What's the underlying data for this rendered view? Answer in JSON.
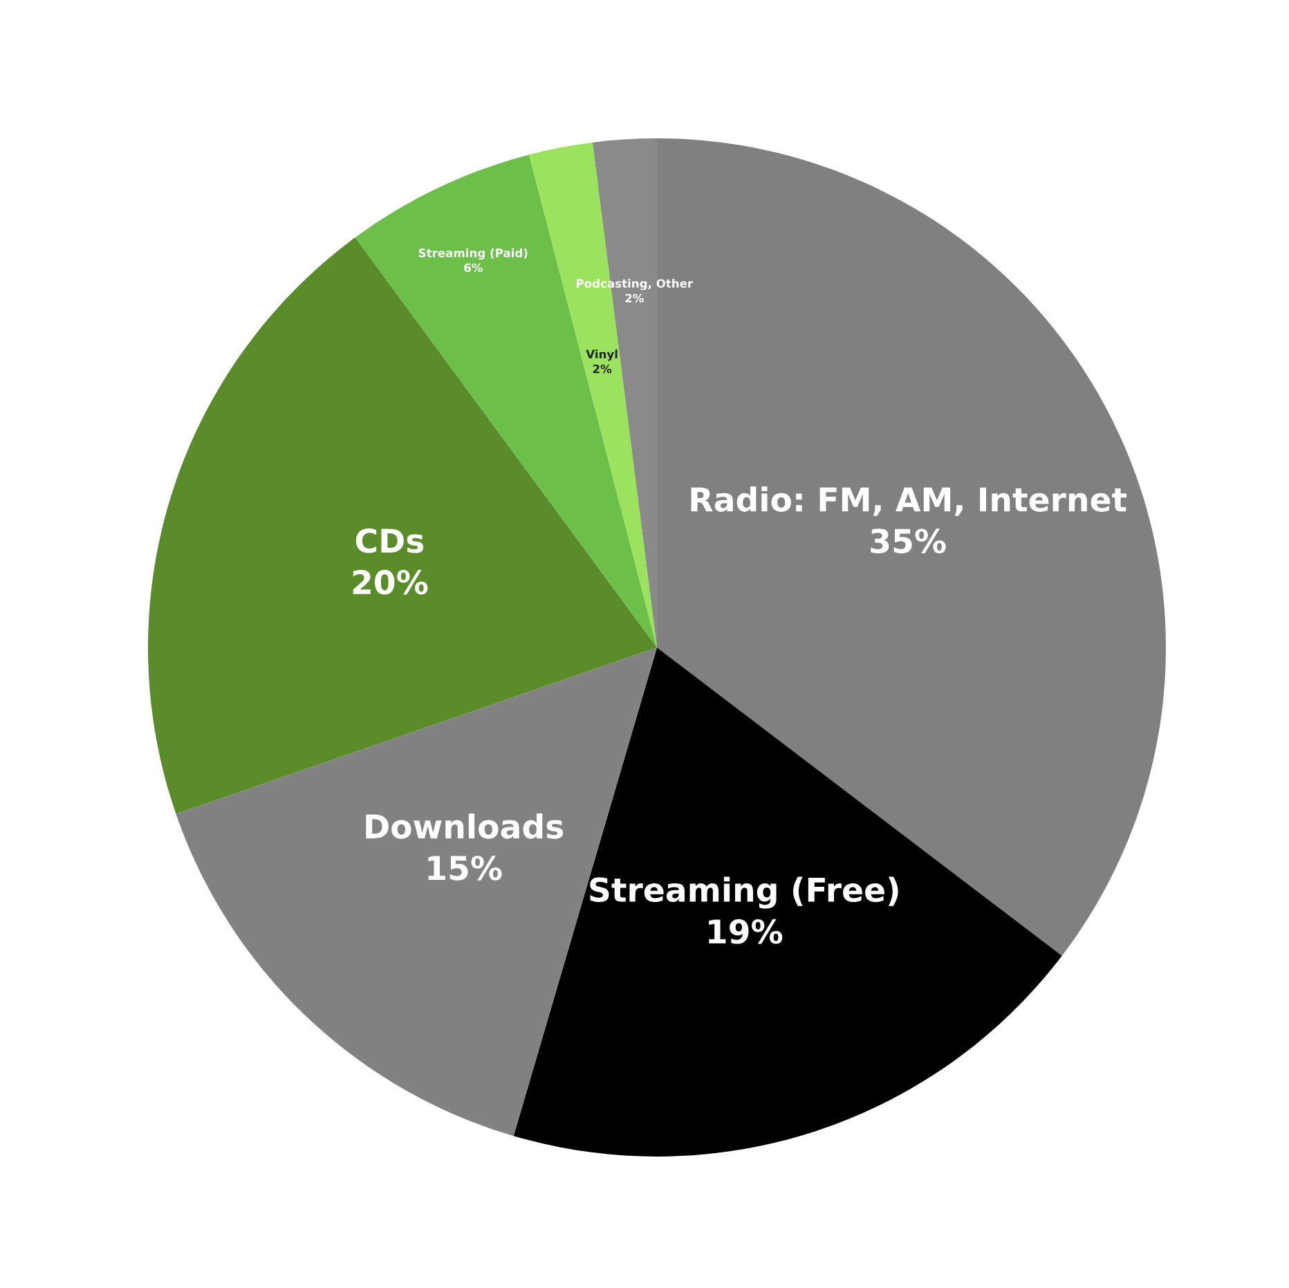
{
  "chart_data": {
    "type": "pie",
    "categories": [
      "Radio: FM, AM, Internet",
      "Streaming (Free)",
      "Downloads",
      "CDs",
      "Streaming (Paid)",
      "Vinyl",
      "Podcasting, Other"
    ],
    "values": [
      35,
      19,
      15,
      20,
      6,
      2,
      2
    ],
    "value_labels": [
      "35%",
      "19%",
      "15%",
      "20%",
      "6%",
      "2%",
      "2%"
    ],
    "colors": [
      "#808080",
      "#000000",
      "#828282",
      "#5b8c2a",
      "#6cc04a",
      "#9be35f",
      "#8a8a8a"
    ],
    "legend": false
  }
}
